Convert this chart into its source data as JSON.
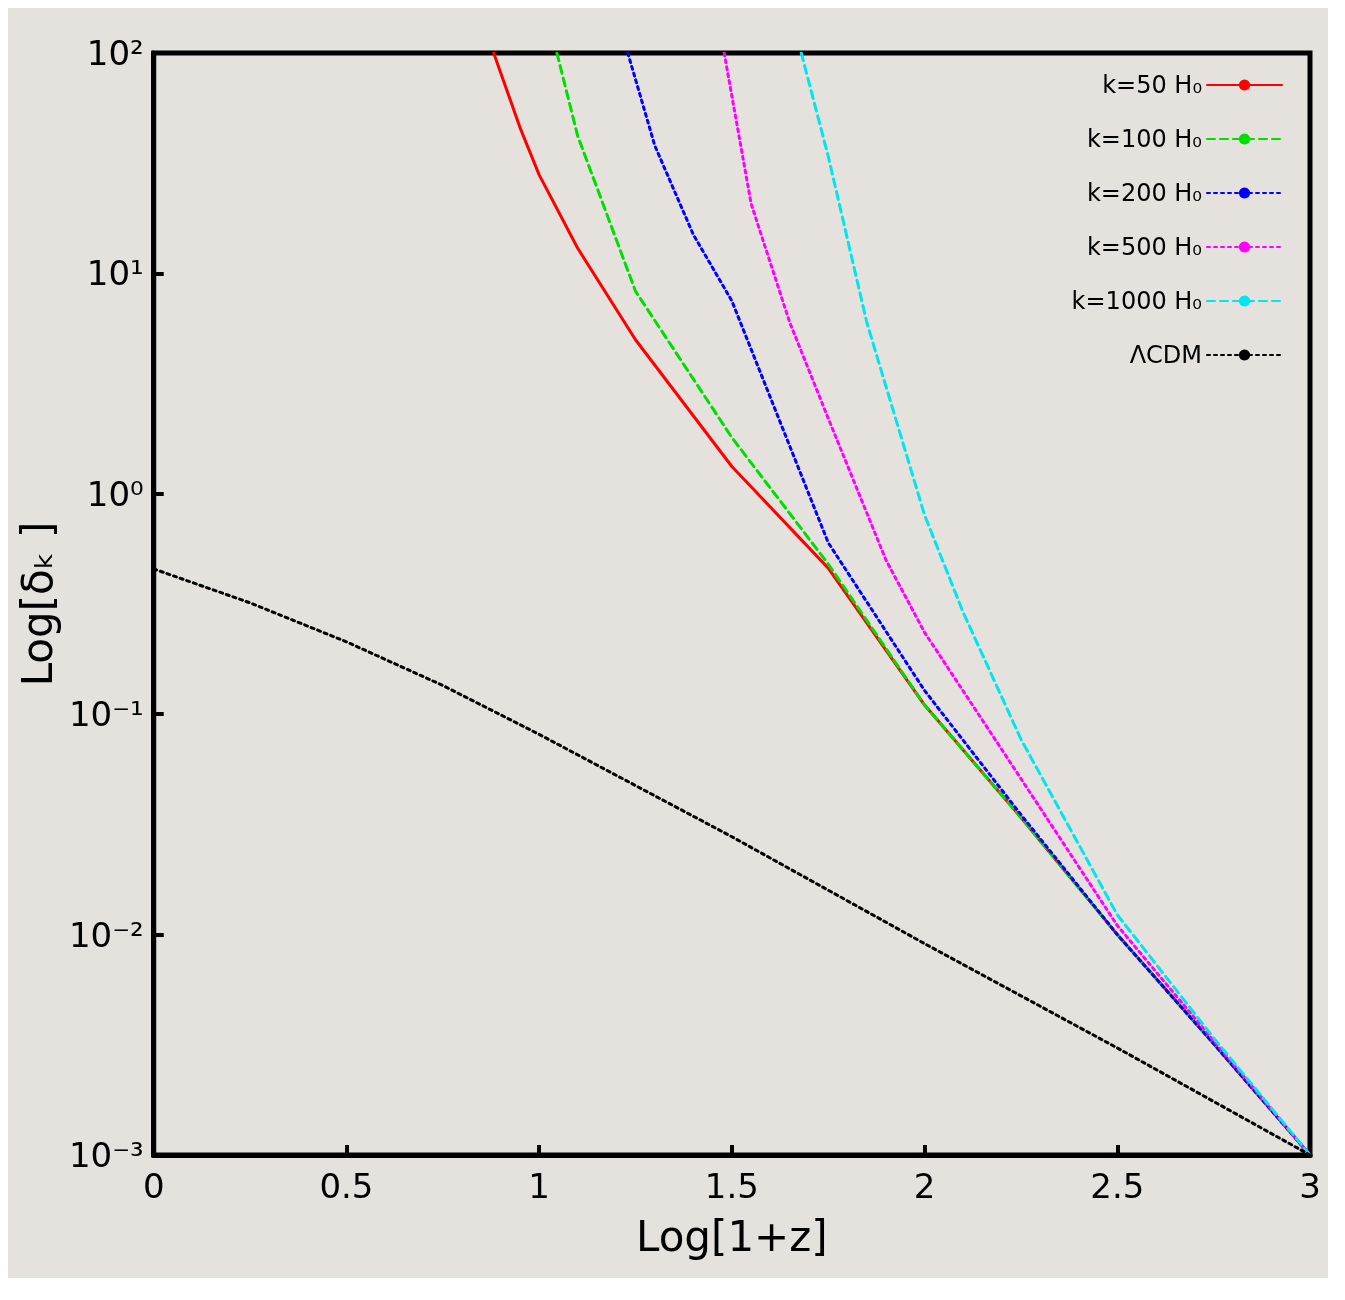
{
  "chart_data": {
    "type": "line",
    "xlabel": "Log[1+z]",
    "ylabel": "Log[δₖ ]",
    "log": "y",
    "legend": "top right",
    "grid": false,
    "xlim": [
      0,
      3
    ],
    "xticks": [
      0,
      0.5,
      1,
      1.5,
      2,
      2.5,
      3
    ],
    "ylim": [
      0.001,
      100
    ],
    "yticks": [
      {
        "value": 0.001,
        "label": "10⁻³"
      },
      {
        "value": 0.01,
        "label": "10⁻²"
      },
      {
        "value": 0.1,
        "label": "10⁻¹"
      },
      {
        "value": 1,
        "label": "10⁰"
      },
      {
        "value": 10,
        "label": "10¹"
      },
      {
        "value": 100,
        "label": "10²"
      }
    ],
    "series": [
      {
        "name": "k=50 H₀",
        "color": "#ff0000",
        "line_style": "solid",
        "x": [
          0.882,
          0.95,
          1.0,
          1.1,
          1.25,
          1.5,
          1.75,
          2.0,
          2.25,
          2.5,
          2.75,
          3.0
        ],
        "values": [
          100,
          46,
          28,
          13,
          5.0,
          1.33,
          0.46,
          0.11,
          0.034,
          0.01,
          0.0032,
          0.001
        ]
      },
      {
        "name": "k=100 H₀",
        "color": "#00dd00",
        "line_style": "dashed",
        "x": [
          1.046,
          1.1,
          1.25,
          1.5,
          1.75,
          2.0,
          2.25,
          2.5,
          2.75,
          3.0
        ],
        "values": [
          100,
          42,
          8.3,
          1.8,
          0.48,
          0.11,
          0.034,
          0.01,
          0.0032,
          0.001
        ]
      },
      {
        "name": "k=200 H₀",
        "color": "#0000ff",
        "line_style": "dotted",
        "x": [
          1.23,
          1.3,
          1.4,
          1.5,
          1.75,
          2.0,
          2.25,
          2.5,
          2.75,
          3.0
        ],
        "values": [
          100,
          38,
          15,
          7.5,
          0.6,
          0.128,
          0.035,
          0.01,
          0.0032,
          0.001
        ]
      },
      {
        "name": "k=500 H₀",
        "color": "#ff00ff",
        "line_style": "dotted",
        "x": [
          1.48,
          1.55,
          1.65,
          1.75,
          1.9,
          2.0,
          2.25,
          2.5,
          2.75,
          3.0
        ],
        "values": [
          100,
          20.7,
          6.0,
          2.2,
          0.5,
          0.235,
          0.051,
          0.011,
          0.0033,
          0.001
        ]
      },
      {
        "name": "k=1000 H₀",
        "color": "#00e5ee",
        "line_style": "dashed",
        "x": [
          1.68,
          1.75,
          1.85,
          2.0,
          2.1,
          2.25,
          2.5,
          2.75,
          3.0
        ],
        "values": [
          100,
          34,
          6.0,
          0.8,
          0.29,
          0.077,
          0.0123,
          0.0034,
          0.001
        ]
      },
      {
        "name": "ΛCDM",
        "color": "#000000",
        "line_style": "dotted",
        "x": [
          0,
          0.25,
          0.5,
          0.75,
          1.0,
          1.5,
          2.0,
          2.5,
          3.0
        ],
        "values": [
          0.456,
          0.32,
          0.213,
          0.135,
          0.081,
          0.0278,
          0.0091,
          0.00306,
          0.001
        ]
      }
    ]
  }
}
